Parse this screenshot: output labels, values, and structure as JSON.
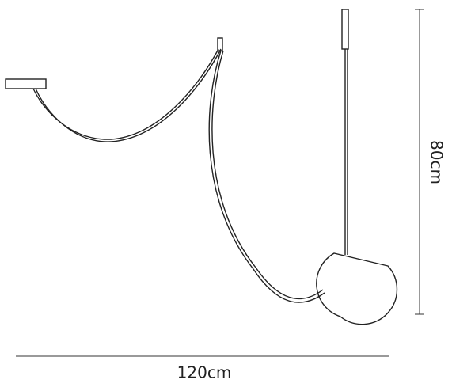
{
  "dimensions": {
    "height": "80cm",
    "width": "120cm"
  }
}
